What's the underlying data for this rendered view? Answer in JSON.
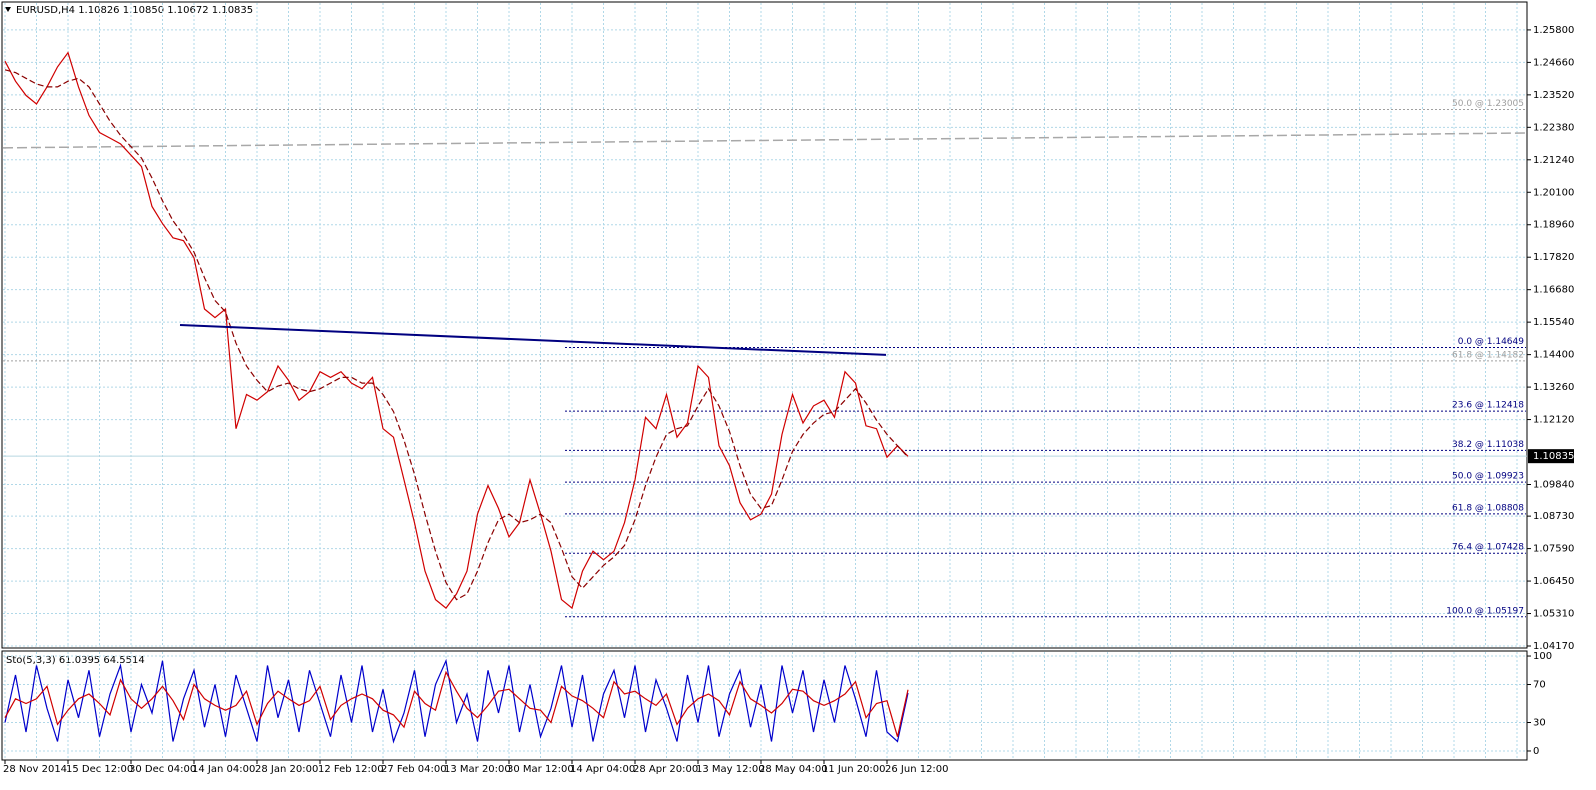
{
  "chart_data": [
    {
      "type": "line",
      "title": "EURUSD,H4  1.10826 1.10850 1.10672 1.10835",
      "categories": [
        "28 Nov 2014",
        null,
        null,
        null,
        null,
        null,
        "15 Dec 12:00",
        null,
        null,
        null,
        null,
        null,
        "30 Dec 04:00",
        null,
        null,
        null,
        null,
        null,
        "14 Jan 04:00",
        null,
        null,
        null,
        null,
        null,
        "28 Jan 20:00",
        null,
        null,
        null,
        null,
        null,
        "12 Feb 12:00",
        null,
        null,
        null,
        null,
        null,
        "27 Feb 04:00",
        null,
        null,
        null,
        null,
        null,
        "13 Mar 20:00",
        null,
        null,
        null,
        null,
        null,
        "30 Mar 12:00",
        null,
        null,
        null,
        null,
        null,
        "14 Apr 04:00",
        null,
        null,
        null,
        null,
        null,
        "28 Apr 20:00",
        null,
        null,
        null,
        null,
        null,
        "13 May 12:00",
        null,
        null,
        null,
        null,
        null,
        "28 May 04:00",
        null,
        null,
        null,
        null,
        null,
        "11 Jun 20:00",
        null,
        null,
        null,
        null,
        null,
        "26 Jun 12:00",
        null,
        null
      ],
      "series": [
        {
          "color": "#d00000",
          "values": [
            1.247,
            1.24,
            1.235,
            1.232,
            1.238,
            1.245,
            1.25,
            1.238,
            1.228,
            1.222,
            1.22,
            1.218,
            1.214,
            1.21,
            1.196,
            1.19,
            1.185,
            1.184,
            1.178,
            1.16,
            1.157,
            1.16,
            1.118,
            1.13,
            1.128,
            1.131,
            1.14,
            1.135,
            1.128,
            1.131,
            1.138,
            1.136,
            1.138,
            1.134,
            1.132,
            1.136,
            1.118,
            1.115,
            1.1,
            1.085,
            1.068,
            1.058,
            1.055,
            1.06,
            1.068,
            1.088,
            1.098,
            1.09,
            1.08,
            1.085,
            1.1,
            1.088,
            1.075,
            1.058,
            1.055,
            1.068,
            1.075,
            1.072,
            1.075,
            1.085,
            1.1,
            1.122,
            1.118,
            1.13,
            1.115,
            1.12,
            1.14,
            1.136,
            1.112,
            1.105,
            1.092,
            1.086,
            1.088,
            1.095,
            1.116,
            1.13,
            1.12,
            1.126,
            1.128,
            1.122,
            1.138,
            1.134,
            1.119,
            1.118,
            1.108,
            1.112,
            1.1083
          ]
        },
        {
          "color": "#8b0000",
          "dash": true,
          "values": [
            1.244,
            1.243,
            1.241,
            1.239,
            1.238,
            1.238,
            1.24,
            1.241,
            1.238,
            1.232,
            1.226,
            1.221,
            1.217,
            1.213,
            1.206,
            1.198,
            1.191,
            1.186,
            1.18,
            1.171,
            1.163,
            1.159,
            1.148,
            1.14,
            1.135,
            1.131,
            1.133,
            1.134,
            1.132,
            1.131,
            1.132,
            1.134,
            1.136,
            1.136,
            1.134,
            1.134,
            1.13,
            1.124,
            1.114,
            1.102,
            1.088,
            1.075,
            1.064,
            1.058,
            1.06,
            1.068,
            1.078,
            1.086,
            1.088,
            1.085,
            1.086,
            1.088,
            1.085,
            1.076,
            1.066,
            1.062,
            1.066,
            1.07,
            1.073,
            1.077,
            1.086,
            1.098,
            1.108,
            1.116,
            1.118,
            1.119,
            1.126,
            1.132,
            1.126,
            1.117,
            1.105,
            1.095,
            1.09,
            1.091,
            1.1,
            1.11,
            1.116,
            1.12,
            1.123,
            1.124,
            1.128,
            1.132,
            1.127,
            1.121,
            1.116,
            1.112,
            1.108
          ]
        }
      ],
      "ylim": [
        1.041,
        1.2678
      ],
      "yticks": [
        {
          "value": 1.258,
          "label": "1.25800"
        },
        {
          "value": 1.2466,
          "label": "1.24660"
        },
        {
          "value": 1.2352,
          "label": "1.23520"
        },
        {
          "value": 1.2238,
          "label": "1.22380"
        },
        {
          "value": 1.2124,
          "label": "1.21240"
        },
        {
          "value": 1.201,
          "label": "1.20100"
        },
        {
          "value": 1.1896,
          "label": "1.18960"
        },
        {
          "value": 1.1782,
          "label": "1.17820"
        },
        {
          "value": 1.1668,
          "label": "1.16680"
        },
        {
          "value": 1.1554,
          "label": "1.15540"
        },
        {
          "value": 1.144,
          "label": "1.14400"
        },
        {
          "value": 1.1326,
          "label": "1.13260"
        },
        {
          "value": 1.1212,
          "label": "1.12120"
        },
        {
          "value": 1.0984,
          "label": "1.09840"
        },
        {
          "value": 1.0873,
          "label": "1.08730"
        },
        {
          "value": 1.0759,
          "label": "1.07590"
        },
        {
          "value": 1.0645,
          "label": "1.06450"
        },
        {
          "value": 1.0531,
          "label": "1.05310"
        },
        {
          "value": 1.0417,
          "label": "1.04170"
        }
      ],
      "grid": true,
      "current_price": 1.10835,
      "trendline": {
        "color": "#000080",
        "values": [
          1.1544,
          1.1439
        ]
      },
      "long_average": {
        "color": "#a8a8a8",
        "values": [
          1.2166,
          1.2218
        ]
      },
      "fibo": [
        {
          "label": "50.0 @ 1.23005",
          "value": 1.23005,
          "color": "#a0a0a0"
        },
        {
          "label": "0.0 @ 1.14649",
          "value": 1.14649,
          "color": "#000080"
        },
        {
          "label": "61.8 @ 1.14182",
          "value": 1.14182,
          "color": "#a0a0a0"
        },
        {
          "label": "23.6 @ 1.12418",
          "value": 1.12418,
          "color": "#000080"
        },
        {
          "label": "38.2 @ 1.11038",
          "value": 1.11038,
          "color": "#000080"
        },
        {
          "label": "50.0 @ 1.09923",
          "value": 1.09923,
          "color": "#000080"
        },
        {
          "label": "61.8 @ 1.08808",
          "value": 1.08808,
          "color": "#000080"
        },
        {
          "label": "76.4 @ 1.07428",
          "value": 1.07428,
          "color": "#000080"
        },
        {
          "label": "100.0 @ 1.05197",
          "value": 1.05197,
          "color": "#000080"
        }
      ]
    },
    {
      "type": "line",
      "title": "Sto(5,3,3) 61.0395 64.5514",
      "series": [
        {
          "color": "#0000cc",
          "values": [
            30,
            80,
            20,
            90,
            45,
            10,
            75,
            35,
            85,
            15,
            60,
            90,
            20,
            70,
            40,
            95,
            10,
            55,
            85,
            25,
            70,
            15,
            80,
            45,
            10,
            90,
            35,
            75,
            20,
            85,
            50,
            15,
            80,
            30,
            90,
            20,
            65,
            10,
            40,
            85,
            15,
            70,
            95,
            30,
            60,
            10,
            85,
            40,
            90,
            20,
            70,
            15,
            45,
            90,
            25,
            80,
            10,
            60,
            85,
            35,
            90,
            20,
            75,
            45,
            10,
            80,
            30,
            90,
            15,
            60,
            85,
            25,
            70,
            10,
            90,
            40,
            85,
            20,
            75,
            30,
            90,
            55,
            15,
            85,
            20,
            10,
            61.0395
          ]
        },
        {
          "color": "#d00000",
          "values": [
            35,
            55,
            50,
            55,
            68,
            28,
            43,
            55,
            60,
            50,
            38,
            75,
            55,
            45,
            55,
            68,
            53,
            33,
            70,
            55,
            48,
            43,
            48,
            63,
            28,
            50,
            63,
            55,
            48,
            53,
            68,
            33,
            48,
            55,
            60,
            55,
            43,
            38,
            25,
            63,
            50,
            43,
            83,
            63,
            45,
            35,
            48,
            63,
            65,
            55,
            45,
            43,
            30,
            68,
            58,
            53,
            45,
            35,
            73,
            60,
            63,
            55,
            48,
            60,
            28,
            45,
            55,
            60,
            53,
            38,
            73,
            55,
            48,
            40,
            50,
            65,
            63,
            53,
            48,
            53,
            60,
            73,
            35,
            50,
            53,
            15,
            64.5514
          ]
        }
      ],
      "ylim": [
        -9.5,
        105.3
      ],
      "yticks": [
        100,
        70,
        30,
        0
      ]
    }
  ]
}
